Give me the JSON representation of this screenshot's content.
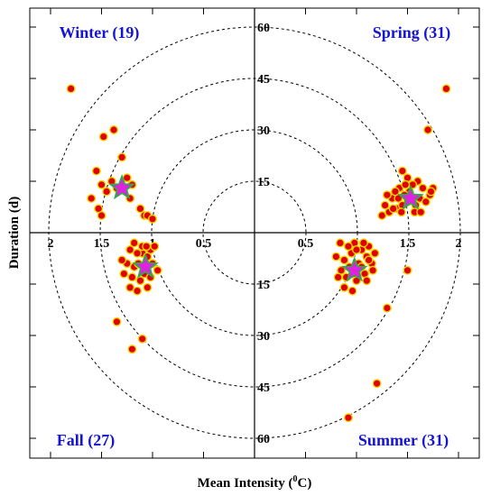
{
  "chart_data": {
    "type": "scatter",
    "title": "",
    "xlabel": "Mean Intensity (°C)",
    "xlabel_main": "Mean Intensity (",
    "xlabel_sup": "0",
    "xlabel_end": "C)",
    "ylabel": "Duration (d)",
    "xlim": [
      -2.0,
      2.0
    ],
    "ylim": [
      -65,
      65
    ],
    "xticks": [
      {
        "value": -2.0,
        "label": "2"
      },
      {
        "value": -1.5,
        "label": "1.5"
      },
      {
        "value": -1.0,
        "label": "1"
      },
      {
        "value": -0.5,
        "label": "0.5"
      },
      {
        "value": 0.5,
        "label": "0.5"
      },
      {
        "value": 1.0,
        "label": "1"
      },
      {
        "value": 1.5,
        "label": "1.5"
      },
      {
        "value": 2.0,
        "label": "2"
      }
    ],
    "yticks": [
      {
        "value": 60,
        "label": "60"
      },
      {
        "value": 45,
        "label": "45"
      },
      {
        "value": 30,
        "label": "30"
      },
      {
        "value": 15,
        "label": "15"
      },
      {
        "value": -15,
        "label": "15"
      },
      {
        "value": -30,
        "label": "30"
      },
      {
        "value": -45,
        "label": "45"
      },
      {
        "value": -60,
        "label": "60"
      }
    ],
    "circle_radii": [
      15,
      30,
      45,
      60
    ],
    "quadrant_labels": [
      {
        "name": "winter",
        "text": "Winter (19)",
        "position": "top-left"
      },
      {
        "name": "spring",
        "text": "Spring (31)",
        "position": "top-right"
      },
      {
        "name": "fall",
        "text": "Fall (27)",
        "position": "bottom-left"
      },
      {
        "name": "summer",
        "text": "Summer (31)",
        "position": "bottom-right"
      }
    ],
    "marker_colors": {
      "fill": "#e00000",
      "edge": "#f2d600",
      "centroid_fill": "#e51ee5",
      "centroid_edge": "#2fa84f"
    },
    "label_color": "#1414d2",
    "series": [
      {
        "name": "Winter",
        "points": [
          [
            -1.8,
            42
          ],
          [
            -1.48,
            28
          ],
          [
            -1.38,
            30
          ],
          [
            -1.55,
            18
          ],
          [
            -1.6,
            10
          ],
          [
            -1.53,
            7
          ],
          [
            -1.5,
            5
          ],
          [
            -1.4,
            15
          ],
          [
            -1.45,
            12
          ],
          [
            -1.3,
            22
          ],
          [
            -1.2,
            14
          ],
          [
            -1.22,
            10
          ],
          [
            -1.12,
            7
          ],
          [
            -1.08,
            5
          ],
          [
            -1.05,
            5
          ],
          [
            -1.0,
            4
          ],
          [
            -1.35,
            13
          ],
          [
            -1.5,
            14
          ],
          [
            -1.25,
            16
          ]
        ],
        "centroid": [
          -1.3,
          13
        ]
      },
      {
        "name": "Spring",
        "points": [
          [
            1.88,
            42
          ],
          [
            1.7,
            30
          ],
          [
            1.45,
            18
          ],
          [
            1.5,
            16
          ],
          [
            1.6,
            15
          ],
          [
            1.65,
            13
          ],
          [
            1.72,
            11
          ],
          [
            1.75,
            13
          ],
          [
            1.55,
            14
          ],
          [
            1.42,
            13
          ],
          [
            1.35,
            10
          ],
          [
            1.28,
            8
          ],
          [
            1.4,
            7
          ],
          [
            1.32,
            6
          ],
          [
            1.25,
            5
          ],
          [
            1.5,
            9
          ],
          [
            1.45,
            8
          ],
          [
            1.62,
            10
          ],
          [
            1.58,
            8
          ],
          [
            1.52,
            12
          ],
          [
            1.48,
            14
          ],
          [
            1.38,
            12
          ],
          [
            1.3,
            11
          ],
          [
            1.68,
            9
          ],
          [
            1.73,
            12
          ],
          [
            1.36,
            7
          ],
          [
            1.44,
            6
          ],
          [
            1.57,
            6
          ],
          [
            1.63,
            6
          ],
          [
            1.47,
            11
          ],
          [
            1.41,
            10
          ]
        ],
        "centroid": [
          1.53,
          10
        ]
      },
      {
        "name": "Fall",
        "points": [
          [
            -1.35,
            -26
          ],
          [
            -1.2,
            -34
          ],
          [
            -1.1,
            -31
          ],
          [
            -1.22,
            -16
          ],
          [
            -1.15,
            -17
          ],
          [
            -1.05,
            -16
          ],
          [
            -1.18,
            -10
          ],
          [
            -1.25,
            -9
          ],
          [
            -1.3,
            -8
          ],
          [
            -1.1,
            -6
          ],
          [
            -1.02,
            -5
          ],
          [
            -0.98,
            -4
          ],
          [
            -1.05,
            -9
          ],
          [
            -0.95,
            -11
          ],
          [
            -1.15,
            -6
          ],
          [
            -1.08,
            -12
          ],
          [
            -1.2,
            -13
          ],
          [
            -1.12,
            -14
          ],
          [
            -1.0,
            -9
          ],
          [
            -1.05,
            -7
          ],
          [
            -1.1,
            -4
          ],
          [
            -1.22,
            -5
          ],
          [
            -1.28,
            -12
          ],
          [
            -1.18,
            -3
          ],
          [
            -1.02,
            -13
          ],
          [
            -1.14,
            -9
          ],
          [
            -1.06,
            -4
          ]
        ],
        "centroid": [
          -1.07,
          -10
        ]
      },
      {
        "name": "Summer",
        "points": [
          [
            1.05,
            -5
          ],
          [
            1.1,
            -7
          ],
          [
            0.95,
            -6
          ],
          [
            0.88,
            -8
          ],
          [
            0.98,
            -3
          ],
          [
            1.12,
            -4
          ],
          [
            1.15,
            -9
          ],
          [
            1.08,
            -12
          ],
          [
            1.0,
            -14
          ],
          [
            0.9,
            -13
          ],
          [
            0.85,
            -11
          ],
          [
            0.92,
            -4
          ],
          [
            1.02,
            -9
          ],
          [
            1.18,
            -6
          ],
          [
            0.8,
            -7
          ],
          [
            0.88,
            -16
          ],
          [
            0.96,
            -17
          ],
          [
            1.05,
            -10
          ],
          [
            1.1,
            -14
          ],
          [
            0.84,
            -3
          ],
          [
            0.93,
            -10
          ],
          [
            1.0,
            -5
          ],
          [
            1.07,
            -3
          ],
          [
            1.16,
            -11
          ],
          [
            0.82,
            -13
          ],
          [
            1.5,
            -11
          ],
          [
            1.3,
            -22
          ],
          [
            1.2,
            -44
          ],
          [
            0.92,
            -54
          ],
          [
            0.97,
            -12
          ],
          [
            1.12,
            -8
          ]
        ],
        "centroid": [
          0.98,
          -11
        ]
      }
    ]
  }
}
